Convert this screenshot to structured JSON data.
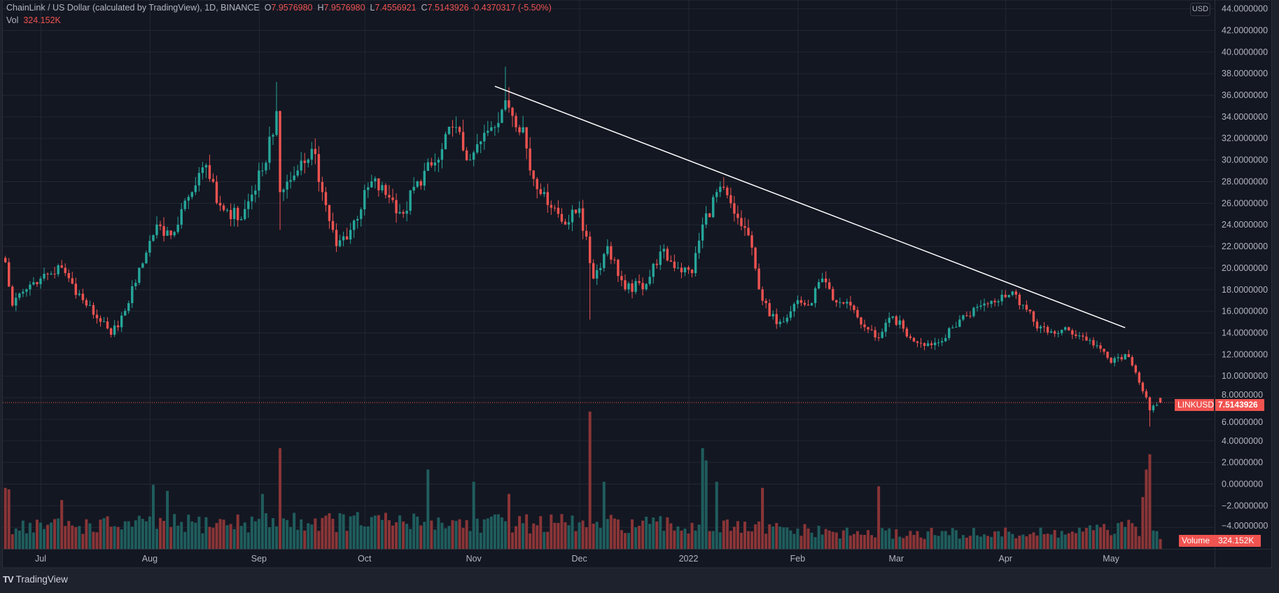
{
  "header": {
    "symbol_title": "ChainLink / US Dollar (calculated by TradingView), 1D, BINANCE",
    "open_label": "O",
    "open": "7.9576980",
    "high_label": "H",
    "high": "7.9576980",
    "low_label": "L",
    "low": "7.4556921",
    "close_label": "C",
    "close": "7.5143926",
    "change": "-0.4370317 (-5.50%)",
    "vol_label": "Vol",
    "vol_value": "324.152K"
  },
  "currency_badge": "USD",
  "price_tag": {
    "symbol": "LINKUSD",
    "value": "7.5143926"
  },
  "volume_tag": {
    "label": "Volume",
    "value": "324.152K"
  },
  "footer": {
    "logo": "TV",
    "brand": "TradingView"
  },
  "colors": {
    "background": "#131722",
    "up": "#26a69a",
    "down": "#ef5350",
    "volume_up": "#1f5d5d",
    "volume_down": "#8a3537",
    "trendline": "#ffffff",
    "grid": "#232733"
  },
  "chart_data": {
    "type": "candlestick",
    "interval": "1D",
    "ylim": [
      -4,
      44
    ],
    "grid": true,
    "y_ticks": [
      44,
      42,
      40,
      38,
      36,
      34,
      32,
      30,
      28,
      26,
      24,
      22,
      20,
      18,
      16,
      14,
      12,
      10,
      8,
      6,
      4,
      2,
      0,
      -2,
      -4
    ],
    "y_tick_labels": [
      "44.0000000",
      "42.0000000",
      "40.0000000",
      "38.0000000",
      "36.0000000",
      "34.0000000",
      "32.0000000",
      "30.0000000",
      "28.0000000",
      "26.0000000",
      "24.0000000",
      "22.0000000",
      "20.0000000",
      "18.0000000",
      "16.0000000",
      "14.0000000",
      "12.0000000",
      "10.0000000",
      "8.0000000",
      "6.0000000",
      "4.0000000",
      "2.0000000",
      "0.0000000",
      "−2.0000000",
      "−4.0000000"
    ],
    "x_ticks": [
      {
        "label": "Jul",
        "date": "2021-07-01"
      },
      {
        "label": "Aug",
        "date": "2021-08-01"
      },
      {
        "label": "Sep",
        "date": "2021-09-01"
      },
      {
        "label": "Oct",
        "date": "2021-10-01"
      },
      {
        "label": "Nov",
        "date": "2021-11-01"
      },
      {
        "label": "Dec",
        "date": "2021-12-01"
      },
      {
        "label": "2022",
        "date": "2022-01-01"
      },
      {
        "label": "Feb",
        "date": "2022-02-01"
      },
      {
        "label": "Mar",
        "date": "2022-03-01"
      },
      {
        "label": "Apr",
        "date": "2022-04-01"
      },
      {
        "label": "May",
        "date": "2022-05-01"
      }
    ],
    "close_points": [
      [
        "2021-06-21",
        20.5
      ],
      [
        "2021-06-23",
        16.5
      ],
      [
        "2021-06-27",
        18
      ],
      [
        "2021-07-01",
        19
      ],
      [
        "2021-07-07",
        20
      ],
      [
        "2021-07-13",
        17
      ],
      [
        "2021-07-18",
        15
      ],
      [
        "2021-07-21",
        13.8
      ],
      [
        "2021-07-25",
        16
      ],
      [
        "2021-07-29",
        20
      ],
      [
        "2021-08-03",
        24
      ],
      [
        "2021-08-07",
        23
      ],
      [
        "2021-08-13",
        27
      ],
      [
        "2021-08-17",
        29.5
      ],
      [
        "2021-08-20",
        26
      ],
      [
        "2021-08-27",
        24.5
      ],
      [
        "2021-09-02",
        29
      ],
      [
        "2021-09-06",
        34.5
      ],
      [
        "2021-09-07",
        27
      ],
      [
        "2021-09-12",
        29
      ],
      [
        "2021-09-16",
        31
      ],
      [
        "2021-09-19",
        27
      ],
      [
        "2021-09-23",
        22
      ],
      [
        "2021-09-27",
        23.5
      ],
      [
        "2021-10-03",
        28
      ],
      [
        "2021-10-08",
        26.5
      ],
      [
        "2021-10-12",
        25
      ],
      [
        "2021-10-16",
        28
      ],
      [
        "2021-10-22",
        30
      ],
      [
        "2021-10-26",
        33
      ],
      [
        "2021-10-31",
        30
      ],
      [
        "2021-11-06",
        33
      ],
      [
        "2021-11-10",
        35.5
      ],
      [
        "2021-11-15",
        33
      ],
      [
        "2021-11-17",
        29
      ],
      [
        "2021-11-21",
        27
      ],
      [
        "2021-11-27",
        24
      ],
      [
        "2021-12-01",
        25.5
      ],
      [
        "2021-12-05",
        19
      ],
      [
        "2021-12-09",
        22
      ],
      [
        "2021-12-14",
        18
      ],
      [
        "2021-12-20",
        18.5
      ],
      [
        "2021-12-24",
        21.5
      ],
      [
        "2021-12-29",
        20
      ],
      [
        "2022-01-02",
        19.5
      ],
      [
        "2022-01-05",
        24
      ],
      [
        "2022-01-10",
        27.5
      ],
      [
        "2022-01-14",
        25
      ],
      [
        "2022-01-18",
        23
      ],
      [
        "2022-01-21",
        18
      ],
      [
        "2022-01-24",
        15.5
      ],
      [
        "2022-01-27",
        15
      ],
      [
        "2022-02-01",
        17
      ],
      [
        "2022-02-04",
        16.5
      ],
      [
        "2022-02-08",
        19
      ],
      [
        "2022-02-11",
        17
      ],
      [
        "2022-02-16",
        16.5
      ],
      [
        "2022-02-20",
        14.5
      ],
      [
        "2022-02-24",
        13.5
      ],
      [
        "2022-02-28",
        15.5
      ],
      [
        "2022-03-05",
        13.5
      ],
      [
        "2022-03-10",
        13
      ],
      [
        "2022-03-14",
        13.2
      ],
      [
        "2022-03-19",
        15.2
      ],
      [
        "2022-03-25",
        16.5
      ],
      [
        "2022-03-31",
        17.5
      ],
      [
        "2022-04-04",
        17.5
      ],
      [
        "2022-04-09",
        15
      ],
      [
        "2022-04-13",
        14
      ],
      [
        "2022-04-19",
        14.2
      ],
      [
        "2022-04-25",
        13.3
      ],
      [
        "2022-04-28",
        12.5
      ],
      [
        "2022-05-01",
        11.2
      ],
      [
        "2022-05-05",
        12
      ],
      [
        "2022-05-08",
        10.3
      ],
      [
        "2022-05-11",
        8
      ],
      [
        "2022-05-12",
        6.8
      ],
      [
        "2022-05-14",
        7.3
      ],
      [
        "2022-05-15",
        7.957698
      ]
    ],
    "last_candle": {
      "open": 7.957698,
      "high": 7.957698,
      "low": 7.4556921,
      "close": 7.5143926
    },
    "notable_wicks": [
      {
        "date": "2021-09-06",
        "high": 37.2
      },
      {
        "date": "2021-09-07",
        "low": 23.5
      },
      {
        "date": "2021-11-10",
        "high": 38.6
      },
      {
        "date": "2021-12-04",
        "low": 15.2
      },
      {
        "date": "2022-05-12",
        "low": 5.3
      }
    ],
    "volume_unit": "K",
    "volume_base": [
      [
        "2021-06-21",
        750
      ],
      [
        "2021-08-01",
        800
      ],
      [
        "2021-09-15",
        900
      ],
      [
        "2021-11-01",
        850
      ],
      [
        "2021-12-15",
        800
      ],
      [
        "2022-01-25",
        650
      ],
      [
        "2022-02-15",
        500
      ],
      [
        "2022-04-15",
        500
      ],
      [
        "2022-05-08",
        700
      ],
      [
        "2022-05-15",
        500
      ]
    ],
    "volume_spikes": [
      [
        "2021-06-21",
        2000
      ],
      [
        "2021-06-22",
        1950
      ],
      [
        "2021-07-07",
        1600
      ],
      [
        "2021-08-02",
        2100
      ],
      [
        "2021-08-06",
        1900
      ],
      [
        "2021-09-02",
        1800
      ],
      [
        "2021-09-07",
        3300
      ],
      [
        "2021-10-19",
        2600
      ],
      [
        "2021-11-01",
        2200
      ],
      [
        "2021-11-11",
        1800
      ],
      [
        "2021-12-04",
        4500
      ],
      [
        "2021-12-08",
        2200
      ],
      [
        "2022-01-05",
        3300
      ],
      [
        "2022-01-06",
        2900
      ],
      [
        "2022-01-09",
        2200
      ],
      [
        "2022-01-22",
        2000
      ],
      [
        "2022-02-24",
        2050
      ],
      [
        "2022-05-10",
        1700
      ],
      [
        "2022-05-11",
        2600
      ],
      [
        "2022-05-12",
        3100
      ]
    ],
    "last_volume": 324.152,
    "trendline": {
      "start": {
        "date": "2021-11-07",
        "price": 36.8
      },
      "end": {
        "date": "2022-05-05",
        "price": 14.45
      }
    },
    "last_price": 7.5143926
  }
}
